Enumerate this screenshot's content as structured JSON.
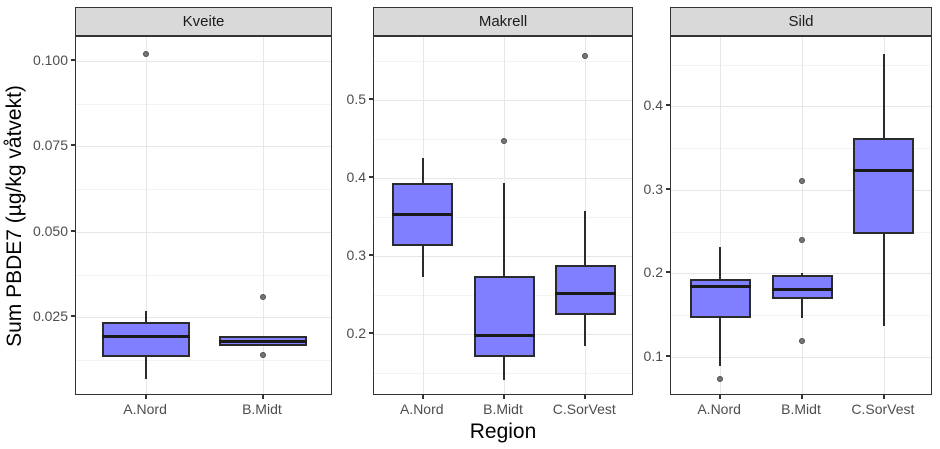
{
  "colors": {
    "box_fill": "#7f7fff",
    "box_border": "#2b2b2b",
    "median": "#1a1a1a",
    "outlier_fill": "#757575",
    "outlier_stroke": "#4b4b4b",
    "strip_bg": "#d9d9d9",
    "panel_border": "#333333",
    "grid_major": "#e7e7e7",
    "grid_minor": "#f3f3f3",
    "tick_text": "#4d4d4d"
  },
  "chart_data": {
    "type": "boxplot",
    "title": "",
    "xlabel": "Region",
    "ylabel": "Sum PBDE7 (µg/kg våtvekt)",
    "grid": "major+minor, white panels, grey strips (ggplot theme_bw facet_wrap with free y scales)",
    "legend_position": "none",
    "facets": [
      {
        "label": "Kveite",
        "y_domain": [
          0.002,
          0.107
        ],
        "y_major_ticks": [
          {
            "v": 0.025,
            "label": "0.025"
          },
          {
            "v": 0.05,
            "label": "0.050"
          },
          {
            "v": 0.075,
            "label": "0.075"
          },
          {
            "v": 0.1,
            "label": "0.100"
          }
        ],
        "y_minor_ticks": [
          0.0125,
          0.0375,
          0.0625,
          0.0875
        ],
        "categories": [
          "A.Nord",
          "B.Midt"
        ],
        "boxes": [
          {
            "category": "A.Nord",
            "whisker_low": 0.007,
            "q1": 0.0135,
            "median": 0.0195,
            "q3": 0.0235,
            "whisker_high": 0.027,
            "outliers": [
              0.102
            ]
          },
          {
            "category": "B.Midt",
            "whisker_low": 0.0165,
            "q1": 0.0165,
            "median": 0.0178,
            "q3": 0.0195,
            "whisker_high": 0.0195,
            "outliers": [
              0.031,
              0.014
            ]
          }
        ]
      },
      {
        "label": "Makrell",
        "y_domain": [
          0.12,
          0.581
        ],
        "y_major_ticks": [
          {
            "v": 0.2,
            "label": "0.2"
          },
          {
            "v": 0.3,
            "label": "0.3"
          },
          {
            "v": 0.4,
            "label": "0.4"
          },
          {
            "v": 0.5,
            "label": "0.5"
          }
        ],
        "y_minor_ticks": [
          0.15,
          0.25,
          0.35,
          0.45,
          0.55
        ],
        "categories": [
          "A.Nord",
          "B.Midt",
          "C.SorVest"
        ],
        "boxes": [
          {
            "category": "A.Nord",
            "whisker_low": 0.273,
            "q1": 0.312,
            "median": 0.353,
            "q3": 0.393,
            "whisker_high": 0.425,
            "outliers": []
          },
          {
            "category": "B.Midt",
            "whisker_low": 0.141,
            "q1": 0.17,
            "median": 0.198,
            "q3": 0.274,
            "whisker_high": 0.394,
            "outliers": [
              0.448
            ]
          },
          {
            "category": "C.SorVest",
            "whisker_low": 0.184,
            "q1": 0.224,
            "median": 0.251,
            "q3": 0.288,
            "whisker_high": 0.357,
            "outliers": [
              0.557
            ]
          }
        ]
      },
      {
        "label": "Sild",
        "y_domain": [
          0.053,
          0.483
        ],
        "y_major_ticks": [
          {
            "v": 0.1,
            "label": "0.1"
          },
          {
            "v": 0.2,
            "label": "0.2"
          },
          {
            "v": 0.3,
            "label": "0.3"
          },
          {
            "v": 0.4,
            "label": "0.4"
          }
        ],
        "y_minor_ticks": [
          0.15,
          0.25,
          0.35,
          0.45
        ],
        "categories": [
          "A.Nord",
          "B.Midt",
          "C.SorVest"
        ],
        "boxes": [
          {
            "category": "A.Nord",
            "whisker_low": 0.089,
            "q1": 0.147,
            "median": 0.184,
            "q3": 0.193,
            "whisker_high": 0.231,
            "outliers": [
              0.073
            ]
          },
          {
            "category": "B.Midt",
            "whisker_low": 0.147,
            "q1": 0.169,
            "median": 0.18,
            "q3": 0.198,
            "whisker_high": 0.2,
            "outliers": [
              0.311,
              0.24,
              0.119
            ]
          },
          {
            "category": "C.SorVest",
            "whisker_low": 0.137,
            "q1": 0.247,
            "median": 0.323,
            "q3": 0.362,
            "whisker_high": 0.463,
            "outliers": []
          }
        ]
      }
    ]
  }
}
